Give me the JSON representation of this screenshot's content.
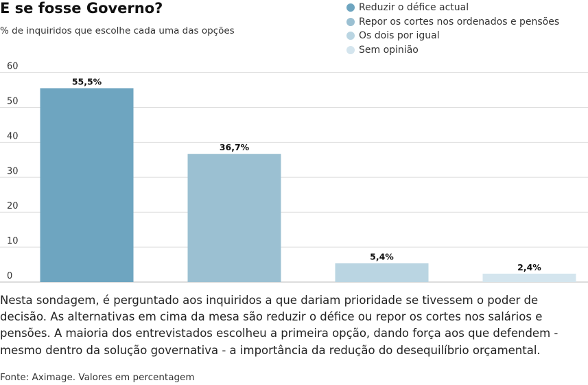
{
  "chart_data": {
    "type": "bar",
    "title": "E se fosse Governo?",
    "subtitle": "% de inquiridos que escolhe cada uma das opções",
    "categories": [
      "Reduzir o défice actual",
      "Repor os cortes nos ordenados e pensões",
      "Os dois por igual",
      "Sem opinião"
    ],
    "values": [
      55.5,
      36.7,
      5.4,
      2.4
    ],
    "data_labels": [
      "55,5%",
      "36,7%",
      "5,4%",
      "2,4%"
    ],
    "colors": [
      "#6ea5c0",
      "#9bc0d2",
      "#bad5e2",
      "#d4e5ee"
    ],
    "ylim": [
      0,
      60
    ],
    "yticks": [
      0,
      10,
      20,
      30,
      40,
      50,
      60
    ],
    "xlabel": "",
    "ylabel": "",
    "grid": true,
    "legend_position": "top-right"
  },
  "description": "Nesta sondagem, é perguntado aos inquiridos a que dariam prioridade se tivessem o poder de decisão. As alternativas em cima da mesa são reduzir o défice ou repor os cortes nos salários e pensões. A maioria dos entrevistados escolheu a primeira opção, dando força aos que defendem - mesmo dentro da solução governativa - a importância da redução do desequilíbrio orçamental.",
  "source": "Fonte: Aximage. Valores em percentagem"
}
